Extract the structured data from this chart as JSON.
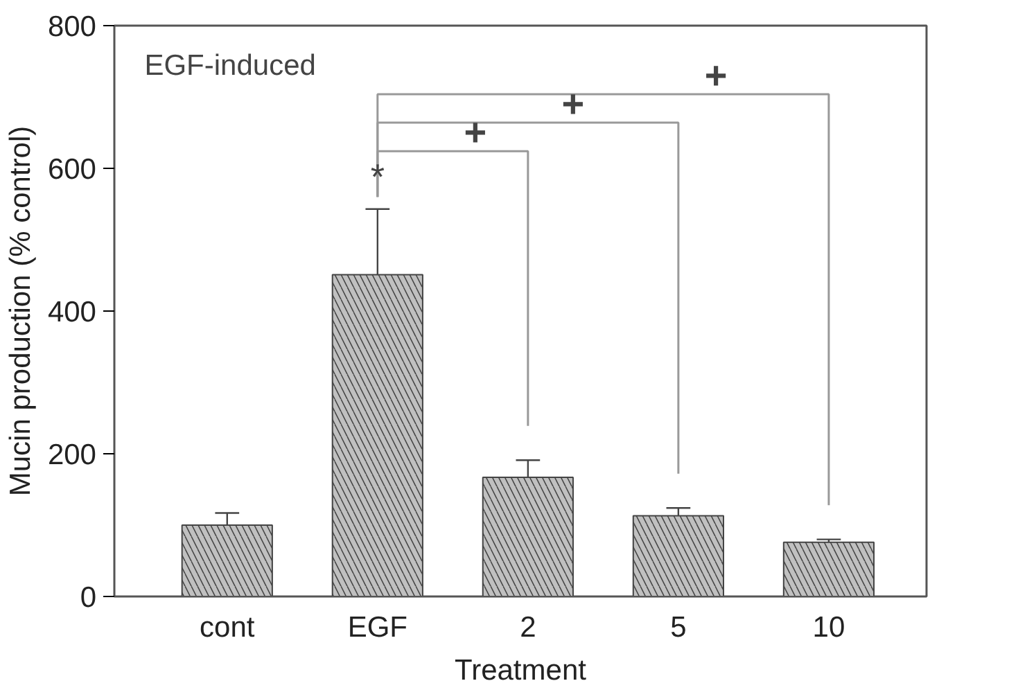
{
  "chart_data": {
    "type": "bar",
    "xlabel": "Treatment",
    "ylabel": "Mucin production (% control)",
    "categories": [
      "cont",
      "EGF",
      "2",
      "5",
      "10"
    ],
    "values": [
      100,
      451,
      167,
      113,
      76
    ],
    "errors": [
      17,
      92,
      24,
      11,
      4
    ],
    "color": "#c0c0c0",
    "ylim": [
      0,
      800
    ],
    "yticks": [
      0,
      200,
      400,
      600,
      800
    ],
    "grid": false,
    "annotations": [
      "EGF-induced",
      "*",
      "+",
      "+",
      "+"
    ]
  }
}
